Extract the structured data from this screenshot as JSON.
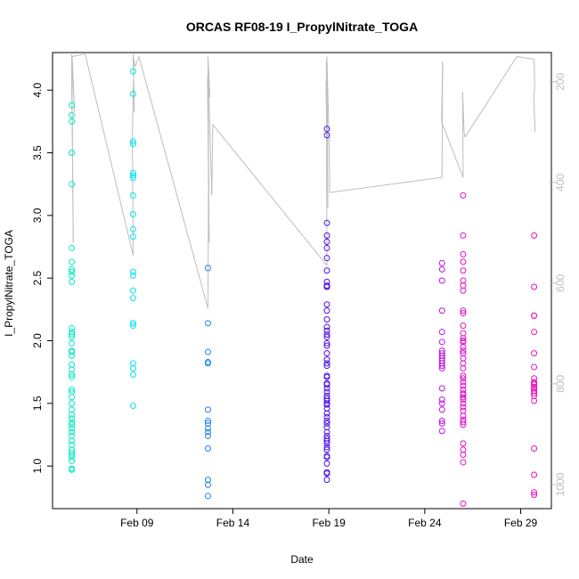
{
  "chart_data": {
    "type": "scatter",
    "title": "ORCAS RF08-19 I_PropylNitrate_TOGA",
    "xlabel": "Date",
    "ylabel": "I_PropylNitrate_TOGA",
    "x_ticks": [
      {
        "label": "Feb 09",
        "day": 9
      },
      {
        "label": "Feb 14",
        "day": 14
      },
      {
        "label": "Feb 19",
        "day": 19
      },
      {
        "label": "Feb 24",
        "day": 24
      },
      {
        "label": "Feb 29",
        "day": 29
      }
    ],
    "xlim": [
      4.6,
      30.6
    ],
    "ylim": [
      0.66,
      4.3
    ],
    "y_ticks": [
      1.0,
      1.5,
      2.0,
      2.5,
      3.0,
      3.5,
      4.0
    ],
    "y2_ticks": [
      200,
      400,
      600,
      800,
      1000
    ],
    "y2lim": [
      1048,
      142
    ],
    "grid": false,
    "legend": "none",
    "colors": {
      "rf08": "#00ECC0",
      "rf09": "#00E6F2",
      "rf10": "#1E7EEC",
      "rf11": "#4C10E8",
      "rf12": "#C010E2",
      "rf13": "#E010CC",
      "rf14": "#EC10B8",
      "altitude": "#BEBEBE",
      "axis": "#000000",
      "right_axis": "#BEBEBE"
    },
    "series": [
      {
        "color_key": "rf08",
        "x": [
          5.6,
          5.6,
          5.6,
          5.6,
          5.6,
          5.6,
          5.6,
          5.6,
          5.6,
          5.6,
          5.6,
          5.6,
          5.6,
          5.6,
          5.6,
          5.6,
          5.6,
          5.6,
          5.6,
          5.6,
          5.6,
          5.6,
          5.6,
          5.6,
          5.6,
          5.6,
          5.6,
          5.6,
          5.6,
          5.6,
          5.6,
          5.6,
          5.6,
          5.6,
          5.6,
          5.6,
          5.6,
          5.6,
          5.6,
          5.6,
          5.6,
          5.6,
          5.6,
          5.6
        ],
        "y": [
          3.88,
          3.8,
          3.75,
          3.5,
          3.25,
          2.74,
          2.63,
          2.57,
          2.55,
          2.52,
          2.47,
          2.1,
          2.07,
          2.05,
          2.03,
          1.98,
          1.92,
          1.91,
          1.81,
          1.77,
          1.73,
          1.71,
          1.61,
          1.59,
          1.55,
          1.5,
          1.45,
          1.41,
          1.38,
          1.35,
          1.3,
          1.27,
          1.24,
          1.2,
          1.17,
          1.13,
          1.11,
          1.09,
          1.07,
          1.04,
          0.98,
          0.97,
          1.33,
          1.88
        ]
      },
      {
        "color_key": "rf09",
        "x": [
          8.8,
          8.8,
          8.8,
          8.8,
          8.8,
          8.8,
          8.8,
          8.8,
          8.8,
          8.8,
          8.8,
          8.8,
          8.8,
          8.8,
          8.8,
          8.8,
          8.8,
          8.8,
          8.8,
          8.8,
          8.8,
          8.8
        ],
        "y": [
          4.15,
          3.97,
          3.59,
          3.57,
          3.34,
          3.32,
          3.16,
          3.01,
          2.89,
          2.83,
          2.55,
          2.52,
          2.4,
          2.34,
          2.14,
          2.12,
          1.82,
          1.78,
          1.73,
          1.48,
          3.3,
          2.14
        ]
      },
      {
        "color_key": "rf10",
        "x": [
          12.7,
          12.7,
          12.7,
          12.7,
          12.7,
          12.7,
          12.7,
          12.7,
          12.7,
          12.7,
          12.7,
          12.7,
          12.7,
          12.7,
          12.7
        ],
        "y": [
          2.58,
          2.14,
          1.91,
          1.83,
          1.82,
          1.45,
          1.36,
          1.34,
          1.3,
          1.27,
          1.24,
          1.14,
          0.89,
          0.85,
          0.76
        ]
      },
      {
        "color_key": "rf11",
        "x": [
          18.9,
          18.9,
          18.9,
          18.9,
          18.9,
          18.9,
          18.9,
          18.9,
          18.9,
          18.9,
          18.9,
          18.9,
          18.9,
          18.9,
          18.9,
          18.9,
          18.9,
          18.9,
          18.9,
          18.9,
          18.9,
          18.9,
          18.9,
          18.9,
          18.9,
          18.9,
          18.9,
          18.9,
          18.9,
          18.9,
          18.9,
          18.9,
          18.9,
          18.9,
          18.9,
          18.9,
          18.9,
          18.9,
          18.9,
          18.9,
          18.9,
          18.9,
          18.9,
          18.9,
          18.9,
          18.9,
          18.9,
          18.9,
          18.9,
          18.9,
          18.9,
          18.9,
          18.9,
          18.9,
          18.9
        ],
        "y": [
          3.69,
          3.64,
          2.94,
          2.84,
          2.79,
          2.74,
          2.66,
          2.56,
          2.47,
          2.44,
          2.43,
          2.29,
          2.24,
          2.17,
          2.11,
          2.08,
          2.03,
          1.98,
          1.96,
          1.9,
          1.85,
          1.82,
          1.8,
          1.71,
          1.62,
          1.59,
          1.56,
          1.54,
          1.52,
          1.49,
          1.46,
          1.42,
          1.36,
          1.34,
          1.31,
          1.27,
          1.22,
          1.2,
          1.18,
          1.15,
          1.08,
          1.07,
          1.02,
          0.95,
          0.94,
          0.89,
          1.13,
          1.24,
          1.66,
          2.43,
          1.5,
          1.72,
          2.05,
          1.65,
          1.39
        ]
      },
      {
        "color_key": "rf12",
        "x": [
          24.9,
          24.9,
          24.9,
          24.9,
          24.9,
          24.9,
          24.9,
          24.9,
          24.9,
          24.9,
          24.9,
          24.9,
          24.9,
          24.9,
          24.9,
          24.9,
          24.9,
          24.9,
          24.9,
          24.9,
          24.9
        ],
        "y": [
          2.62,
          2.57,
          2.48,
          2.24,
          2.07,
          1.99,
          1.92,
          1.9,
          1.86,
          1.84,
          1.82,
          1.8,
          1.78,
          1.62,
          1.53,
          1.5,
          1.36,
          1.34,
          1.28,
          1.88,
          1.45
        ]
      },
      {
        "color_key": "rf13",
        "x": [
          26.0,
          26.0,
          26.0,
          26.0,
          26.0,
          26.0,
          26.0,
          26.0,
          26.0,
          26.0,
          26.0,
          26.0,
          26.0,
          26.0,
          26.0,
          26.0,
          26.0,
          26.0,
          26.0,
          26.0,
          26.0,
          26.0,
          26.0,
          26.0,
          26.0,
          26.0,
          26.0,
          26.0,
          26.0,
          26.0,
          26.0,
          26.0,
          26.0,
          26.0,
          26.0,
          26.0,
          26.0,
          26.0,
          26.0,
          26.0,
          26.0,
          26.0
        ],
        "y": [
          3.16,
          2.84,
          2.69,
          2.63,
          2.56,
          2.48,
          2.44,
          2.4,
          2.24,
          2.22,
          2.12,
          2.06,
          2.02,
          1.99,
          1.95,
          1.9,
          1.86,
          1.78,
          1.72,
          1.67,
          1.64,
          1.61,
          1.57,
          1.55,
          1.53,
          1.5,
          1.47,
          1.44,
          1.4,
          1.37,
          1.35,
          1.33,
          1.18,
          1.13,
          1.09,
          1.03,
          0.7,
          2.0,
          1.82,
          1.58,
          1.92,
          1.7
        ]
      },
      {
        "color_key": "rf14",
        "x": [
          29.7,
          29.7,
          29.7,
          29.7,
          29.7,
          29.7,
          29.7,
          29.7,
          29.7,
          29.7,
          29.7,
          29.7,
          29.7,
          29.7,
          29.7,
          29.7,
          29.7,
          29.7,
          29.7,
          29.7,
          29.7,
          29.7
        ],
        "y": [
          2.84,
          2.43,
          2.2,
          2.2,
          2.07,
          1.9,
          1.79,
          1.7,
          1.67,
          1.65,
          1.63,
          1.6,
          1.6,
          1.58,
          1.56,
          1.52,
          1.14,
          0.93,
          0.79,
          0.77,
          1.62,
          1.66
        ]
      }
    ],
    "altitude_trace": {
      "x": [
        5.6,
        5.63,
        5.6,
        5.68,
        5.6,
        5.75,
        5.62,
        6.3,
        8.8,
        8.76,
        8.83,
        8.8,
        8.86,
        8.8,
        8.9,
        9.1,
        12.7,
        12.73,
        12.68,
        12.76,
        12.7,
        12.8,
        12.7,
        12.9,
        12.95,
        18.9,
        18.87,
        18.93,
        18.85,
        18.95,
        18.9,
        19.0,
        19.05,
        24.9,
        24.93,
        24.88,
        26.0,
        25.97,
        26.05,
        26.1,
        28.8,
        29.7,
        29.73,
        29.68,
        29.75
      ],
      "alt": [
        145,
        310,
        180,
        520,
        150,
        260,
        150,
        145,
        545,
        300,
        180,
        145,
        260,
        150,
        170,
        150,
        650,
        380,
        190,
        520,
        150,
        230,
        160,
        425,
        285,
        565,
        160,
        320,
        200,
        450,
        150,
        300,
        420,
        390,
        160,
        280,
        390,
        220,
        300,
        310,
        150,
        155,
        210,
        230,
        300
      ]
    }
  }
}
